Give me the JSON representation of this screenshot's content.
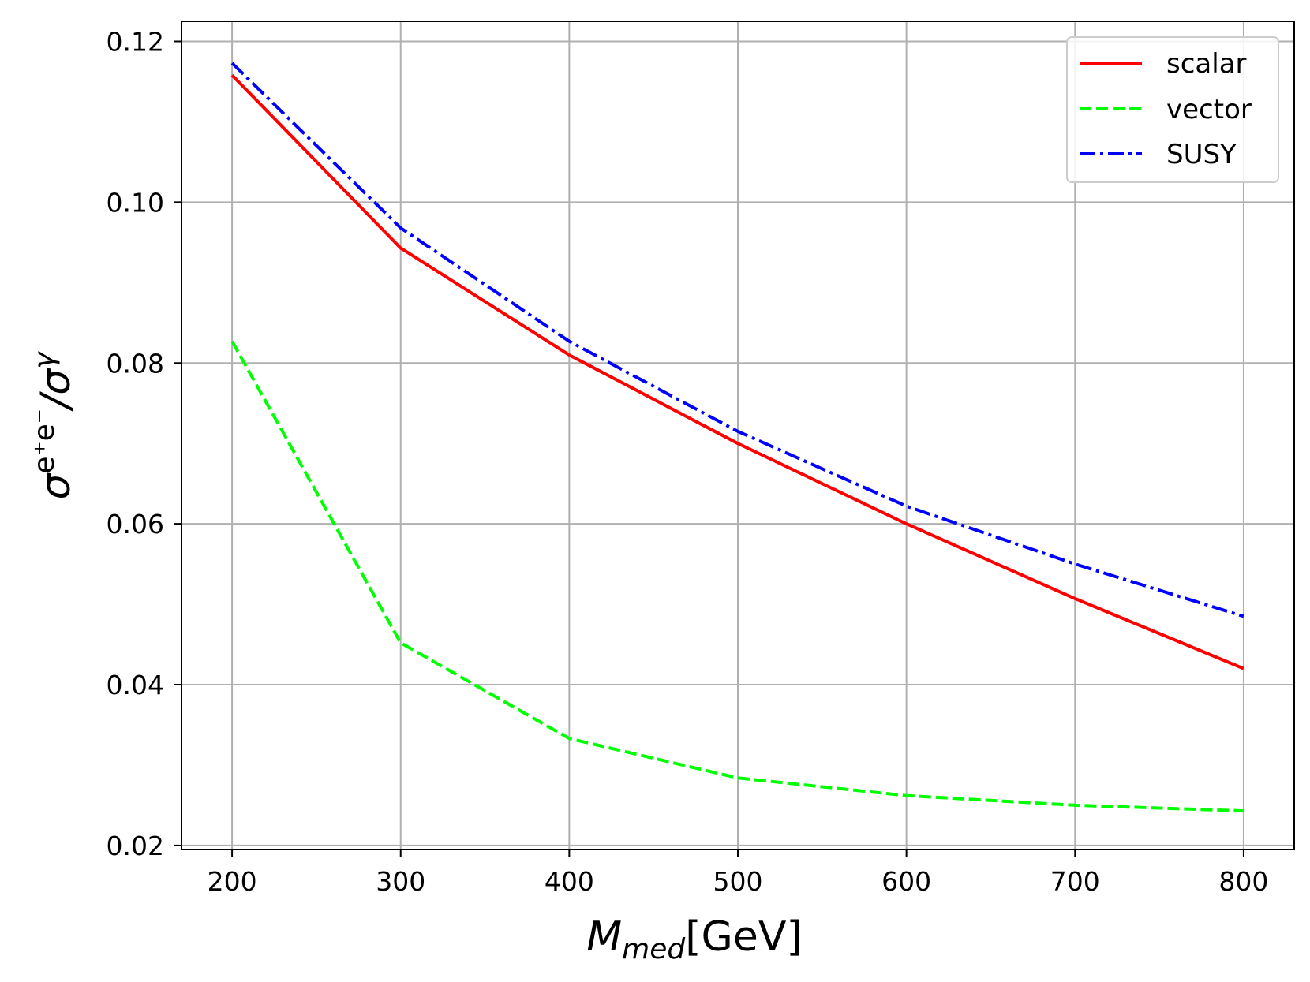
{
  "chart_data": {
    "type": "line",
    "xlabel": {
      "main": "M",
      "sub": "med",
      "unit": "[GeV]"
    },
    "ylabel": {
      "sigma": "σ",
      "sup": "e⁺e⁻",
      "slash": "/σ",
      "gamma": "γ"
    },
    "x": [
      200,
      300,
      400,
      500,
      600,
      700,
      800
    ],
    "xlim": [
      170,
      830
    ],
    "ylim": [
      0.0195,
      0.1225
    ],
    "xticks": [
      "200",
      "300",
      "400",
      "500",
      "600",
      "700",
      "800"
    ],
    "yticks": [
      "0.02",
      "0.04",
      "0.06",
      "0.08",
      "0.10",
      "0.12"
    ],
    "grid": true,
    "legend_position": "top-right",
    "series": [
      {
        "name": "scalar",
        "color": "#ff0000",
        "style": "solid",
        "values": [
          0.1158,
          0.0943,
          0.081,
          0.07,
          0.06,
          0.0507,
          0.042
        ]
      },
      {
        "name": "vector",
        "color": "#00ff00",
        "style": "dashed",
        "values": [
          0.0827,
          0.0452,
          0.0333,
          0.0284,
          0.0262,
          0.025,
          0.0243
        ]
      },
      {
        "name": "SUSY",
        "color": "#0000ff",
        "style": "dashdot",
        "values": [
          0.1173,
          0.0968,
          0.0827,
          0.0715,
          0.0622,
          0.055,
          0.0485
        ]
      }
    ]
  }
}
